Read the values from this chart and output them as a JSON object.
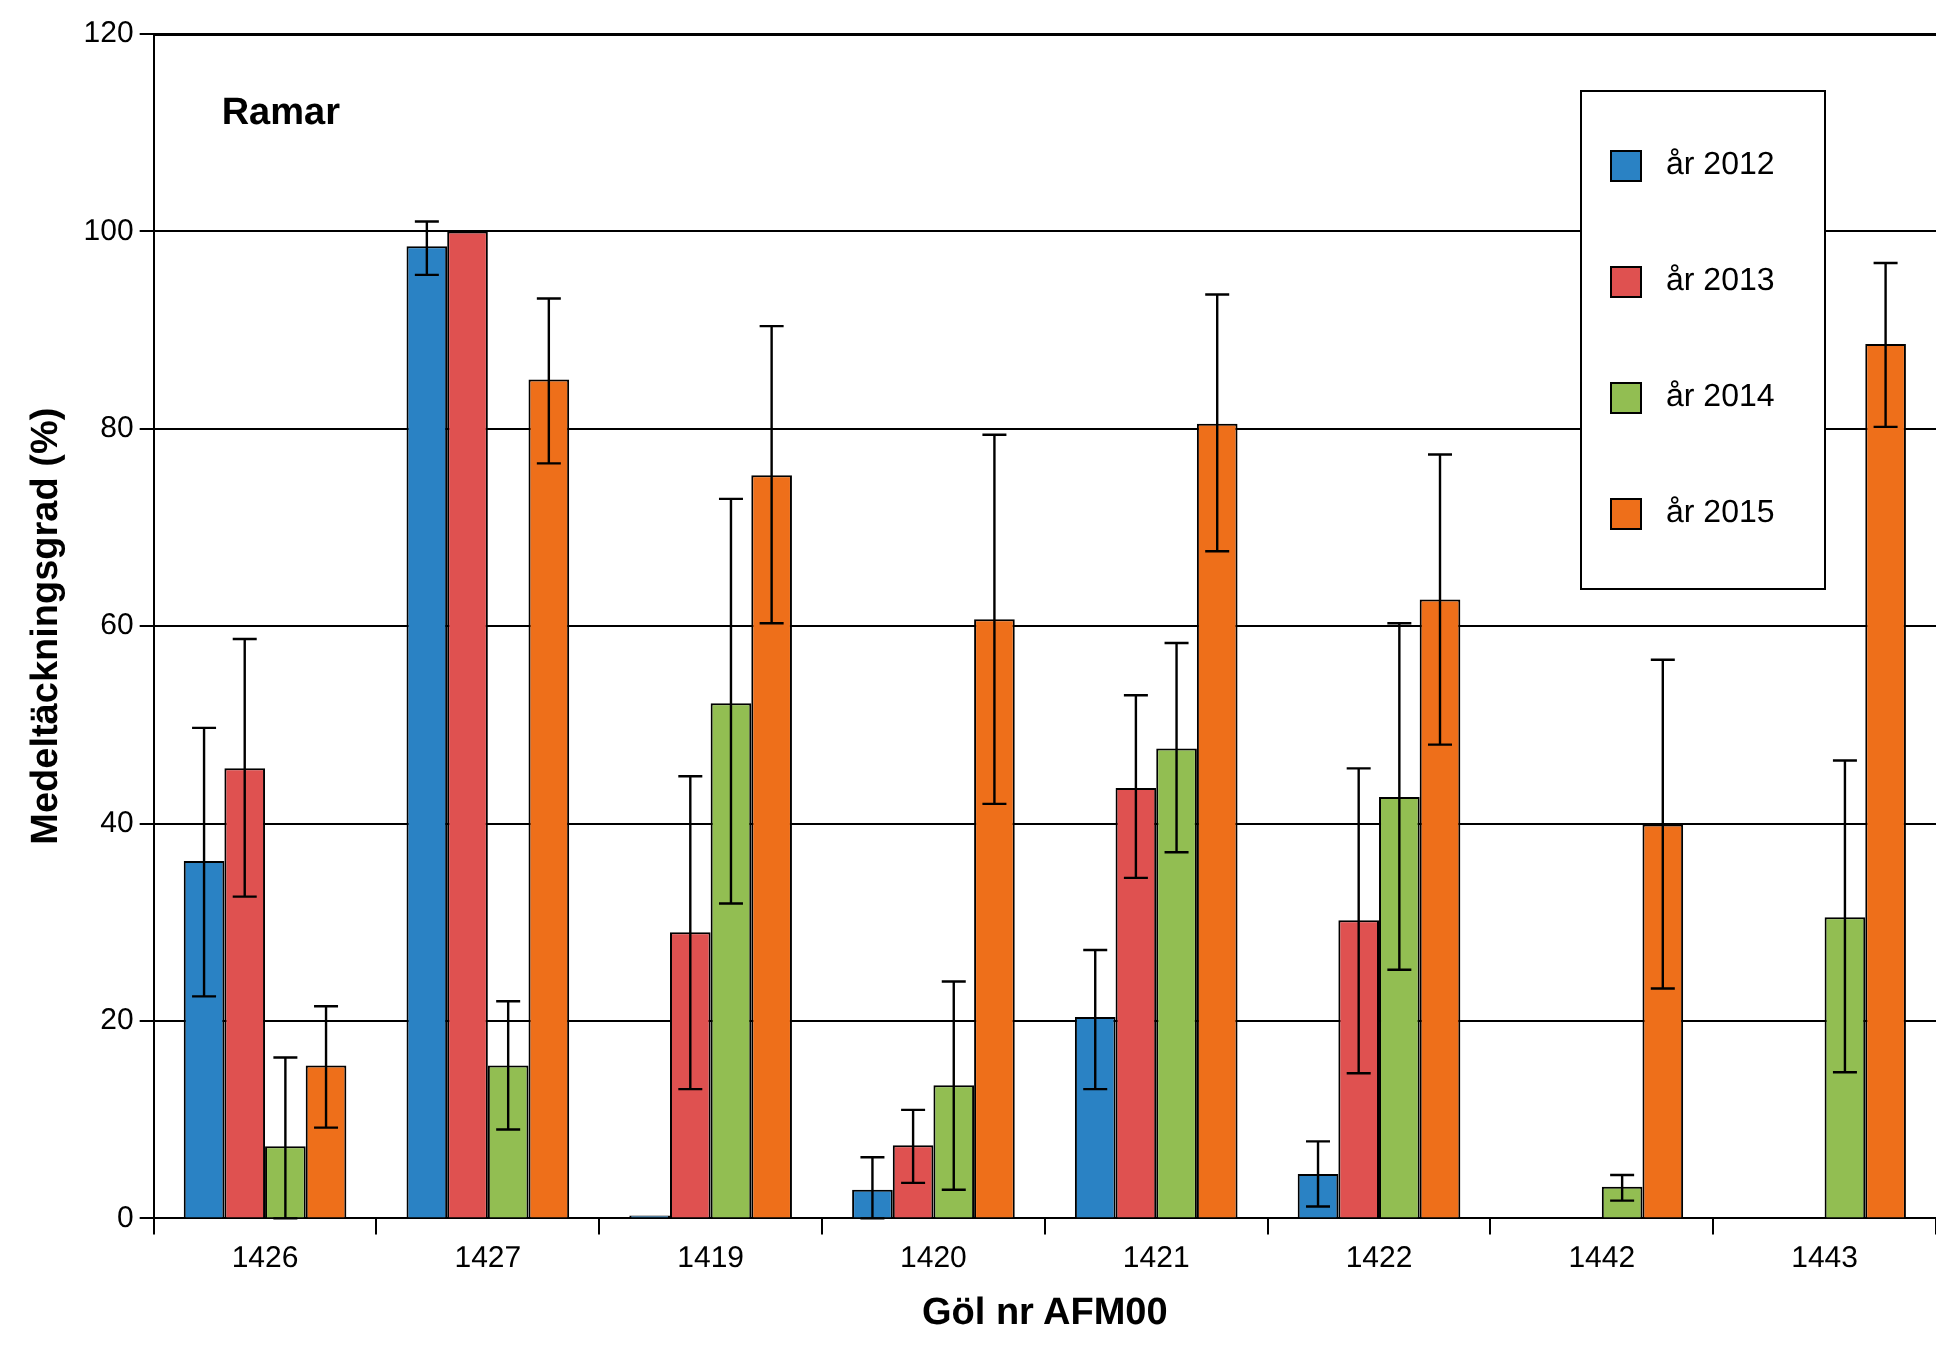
{
  "chart_data": {
    "type": "bar",
    "xlabel": "Göl nr AFM00",
    "ylabel": "Medeltäckningsgrad (%)",
    "annotations": [
      "Ramar"
    ],
    "categories": [
      "1426",
      "1427",
      "1419",
      "1420",
      "1421",
      "1422",
      "1442",
      "1443"
    ],
    "ylim": [
      0,
      120
    ],
    "yticks": [
      0,
      20,
      40,
      60,
      80,
      100,
      120
    ],
    "grid": "y",
    "legend": "top right",
    "series": [
      {
        "name": "år 2012",
        "color": "#2a82c4",
        "values": [
          36.2,
          98.5,
          0.3,
          2.9,
          20.4,
          4.5,
          null,
          null
        ],
        "errors": [
          [
            22.5,
            49.7
          ],
          [
            95.6,
            101
          ],
          null,
          [
            0,
            6.2
          ],
          [
            13.1,
            27.2
          ],
          [
            1.2,
            7.8
          ],
          null,
          null
        ]
      },
      {
        "name": "år 2013",
        "color": "#df5150",
        "values": [
          45.6,
          100,
          29,
          7.4,
          43.6,
          30.2,
          null,
          null
        ],
        "errors": [
          [
            32.6,
            58.7
          ],
          null,
          [
            13.1,
            44.8
          ],
          [
            3.6,
            11
          ],
          [
            34.5,
            53
          ],
          [
            14.7,
            45.6
          ],
          null,
          null
        ]
      },
      {
        "name": "år 2014",
        "color": "#92be52",
        "values": [
          7.3,
          15.5,
          52.2,
          13.5,
          47.6,
          42.7,
          3.2,
          30.5
        ],
        "errors": [
          [
            0,
            16.3
          ],
          [
            9,
            22
          ],
          [
            31.9,
            72.9
          ],
          [
            2.9,
            24
          ],
          [
            37.1,
            58.3
          ],
          [
            25.2,
            60.3
          ],
          [
            1.8,
            4.4
          ],
          [
            14.8,
            46.4
          ]
        ]
      },
      {
        "name": "år 2015",
        "color": "#ee6f1a",
        "values": [
          15.5,
          85,
          75.3,
          60.7,
          80.5,
          62.7,
          39.9,
          88.6
        ],
        "errors": [
          [
            9.2,
            21.5
          ],
          [
            76.5,
            93.2
          ],
          [
            60.3,
            90.4
          ],
          [
            42,
            79.4
          ],
          [
            67.6,
            93.6
          ],
          [
            48,
            77.4
          ],
          [
            23.3,
            56.6
          ],
          [
            80.2,
            96.8
          ]
        ]
      }
    ]
  }
}
